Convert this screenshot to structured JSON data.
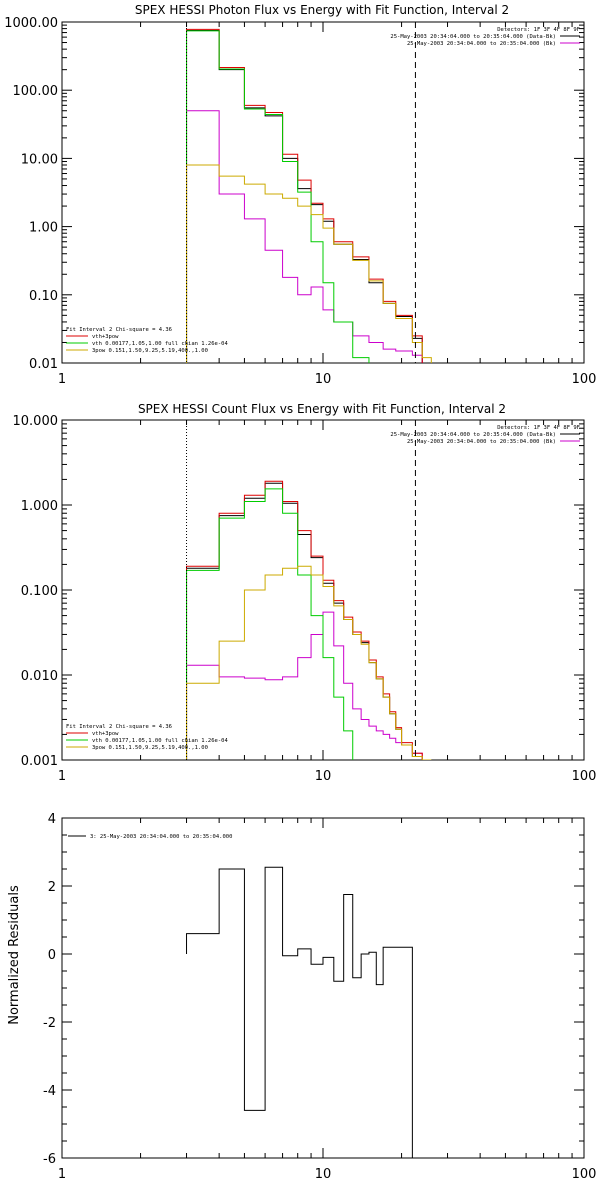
{
  "chart_data": [
    {
      "type": "line",
      "title": "SPEX HESSI Photon Flux vs Energy with Fit Function, Interval 2",
      "x_scale": "log",
      "y_scale": "log",
      "xlim": [
        1,
        100
      ],
      "ylim": [
        0.01,
        1000
      ],
      "x_tick_labels": [
        "1",
        "10",
        "100"
      ],
      "y_tick_labels": [
        "1000.00",
        "100.00",
        "10.00",
        "1.00",
        "0.10",
        "0.01"
      ],
      "vertical_markers": {
        "dotted_x": 3.0,
        "dashed_x": 22.6
      },
      "legend_top_right": {
        "header": "Detectors: 1F 3F 4F 8F 9F",
        "entries": [
          {
            "label": "25-May-2003 20:34:04.000 to 20:35:04.000 (Data-Bk)",
            "color": "#000000"
          },
          {
            "label": "25-May-2003 20:34:04.000 to 20:35:04.000 (Bk)",
            "color": "#cc00cc"
          }
        ]
      },
      "legend_bottom_left": {
        "header": "Fit Interval 2   Chi-square = 4.36",
        "entries": [
          {
            "label": "vth+3pow",
            "color": "#dd0000"
          },
          {
            "label": "vth 0.00177,1.05,1.00  full chian 1.26e-04",
            "color": "#00cc00"
          },
          {
            "label": "3pow 0.151,1.50,9.25,5.19,400.,1.00",
            "color": "#ccaa00"
          }
        ]
      },
      "bin_edges": [
        3.0,
        3.4,
        4.0,
        4.5,
        5.0,
        5.5,
        6.0,
        6.5,
        7.0,
        7.5,
        8.0,
        8.5,
        9.0,
        10.0,
        11.0,
        12.0,
        13.0,
        14.0,
        15.0,
        16.0,
        17.0,
        18.0,
        19.0,
        20.0,
        22.0,
        24.0,
        26.0
      ],
      "series": [
        {
          "name": "Data-Bk",
          "color": "#000000",
          "values": [
            750,
            750,
            200,
            200,
            55,
            55,
            42,
            42,
            10.0,
            10.0,
            3.6,
            3.6,
            2.1,
            1.2,
            0.55,
            0.55,
            0.33,
            0.33,
            0.15,
            0.15,
            0.075,
            0.075,
            0.048,
            0.048,
            0.023,
            null
          ]
        },
        {
          "name": "Bk",
          "color": "#cc00cc",
          "values": [
            50,
            50,
            3.0,
            3.0,
            1.3,
            1.3,
            0.45,
            0.45,
            0.18,
            0.18,
            0.1,
            0.1,
            0.13,
            0.06,
            0.04,
            0.04,
            0.025,
            0.025,
            0.02,
            0.02,
            0.016,
            0.016,
            0.015,
            0.015,
            0.013,
            null
          ]
        },
        {
          "name": "vth+3pow",
          "color": "#dd0000",
          "values": [
            780,
            780,
            215,
            215,
            60,
            60,
            47,
            47,
            11.5,
            11.5,
            4.8,
            4.8,
            2.2,
            1.3,
            0.6,
            0.6,
            0.36,
            0.36,
            0.17,
            0.17,
            0.08,
            0.08,
            0.05,
            0.05,
            0.025,
            null
          ]
        },
        {
          "name": "vth",
          "color": "#00cc00",
          "values": [
            740,
            740,
            205,
            205,
            53,
            53,
            44,
            44,
            9.0,
            9.0,
            3.2,
            3.2,
            0.6,
            0.15,
            0.04,
            0.04,
            0.012,
            0.012,
            null,
            null,
            null,
            null,
            null,
            null,
            null,
            null
          ]
        },
        {
          "name": "3pow",
          "color": "#ccaa00",
          "values": [
            8.0,
            8.0,
            5.5,
            5.5,
            4.2,
            4.2,
            3.0,
            3.0,
            2.6,
            2.6,
            2.0,
            2.0,
            1.5,
            0.95,
            0.55,
            0.55,
            0.32,
            0.32,
            0.16,
            0.16,
            0.075,
            0.075,
            0.045,
            0.045,
            0.02,
            0.012
          ]
        }
      ]
    },
    {
      "type": "line",
      "title": "SPEX HESSI Count Flux vs Energy with Fit Function, Interval 2",
      "x_scale": "log",
      "y_scale": "log",
      "xlim": [
        1,
        100
      ],
      "ylim": [
        0.001,
        10
      ],
      "x_tick_labels": [
        "1",
        "10",
        "100"
      ],
      "y_tick_labels": [
        "10.000",
        "1.000",
        "0.100",
        "0.010",
        "0.001"
      ],
      "vertical_markers": {
        "dotted_x": 3.0,
        "dashed_x": 22.6
      },
      "legend_top_right": {
        "header": "Detectors: 1F 3F 4F 8F 9F",
        "entries": [
          {
            "label": "25-May-2003 20:34:04.000 to 20:35:04.000 (Data-Bk)",
            "color": "#000000"
          },
          {
            "label": "25-May-2003 20:34:04.000 to 20:35:04.000 (Bk)",
            "color": "#cc00cc"
          }
        ]
      },
      "legend_bottom_left": {
        "header": "Fit Interval 2   Chi-square = 4.36",
        "entries": [
          {
            "label": "vth+3pow",
            "color": "#dd0000"
          },
          {
            "label": "vth 0.00177,1.05,1.00  full chian 1.26e-04",
            "color": "#00cc00"
          },
          {
            "label": "3pow 0.151,1.50,9.25,5.19,400.,1.00",
            "color": "#ccaa00"
          }
        ]
      },
      "bin_edges": [
        3.0,
        4.0,
        5.0,
        6.0,
        7.0,
        8.0,
        9.0,
        10.0,
        11.0,
        12.0,
        13.0,
        14.0,
        15.0,
        16.0,
        17.0,
        18.0,
        19.0,
        20.0,
        22.0,
        24.0,
        26.0
      ],
      "series": [
        {
          "name": "Data-Bk",
          "color": "#000000",
          "values": [
            0.18,
            0.75,
            1.2,
            1.8,
            1.05,
            0.45,
            0.24,
            0.12,
            0.07,
            0.045,
            0.03,
            0.024,
            0.014,
            0.009,
            0.0055,
            0.0035,
            0.0023,
            0.0015,
            0.0011,
            null
          ]
        },
        {
          "name": "Bk",
          "color": "#cc00cc",
          "values": [
            0.013,
            0.0095,
            0.0092,
            0.0088,
            0.0095,
            0.016,
            0.03,
            0.055,
            0.022,
            0.008,
            0.004,
            0.003,
            0.0025,
            0.0022,
            0.002,
            0.0018,
            0.0016,
            0.0015,
            0.0012,
            null
          ]
        },
        {
          "name": "vth+3pow",
          "color": "#dd0000",
          "values": [
            0.19,
            0.8,
            1.3,
            1.9,
            1.1,
            0.5,
            0.25,
            0.13,
            0.075,
            0.048,
            0.032,
            0.025,
            0.015,
            0.0095,
            0.006,
            0.0037,
            0.0024,
            0.0016,
            0.0012,
            null
          ]
        },
        {
          "name": "vth",
          "color": "#00cc00",
          "values": [
            0.17,
            0.7,
            1.1,
            1.55,
            0.8,
            0.15,
            0.05,
            0.016,
            0.0055,
            0.0022,
            null,
            null,
            null,
            null,
            null,
            null,
            null,
            null,
            null,
            null
          ]
        },
        {
          "name": "3pow",
          "color": "#ccaa00",
          "values": [
            0.008,
            0.025,
            0.1,
            0.15,
            0.18,
            0.19,
            0.15,
            0.11,
            0.065,
            0.045,
            0.03,
            0.023,
            0.014,
            0.009,
            0.0055,
            0.0035,
            0.0023,
            0.0015,
            0.0011,
            0.0009
          ]
        }
      ]
    },
    {
      "type": "line",
      "title": "",
      "x_scale": "log",
      "y_scale": "linear",
      "xlim": [
        1,
        100
      ],
      "ylim": [
        -6,
        4
      ],
      "x_tick_labels": [
        "1",
        "10",
        "100"
      ],
      "y_tick_labels": [
        "4",
        "2",
        "0",
        "-2",
        "-4",
        "-6"
      ],
      "ylabel": "Normalized Residuals",
      "legend_top_left": {
        "entries": [
          {
            "label": "3: 25-May-2003 20:34:04.000 to 20:35:04.000",
            "color": "#000000"
          }
        ]
      },
      "bin_edges": [
        3.0,
        4.0,
        5.0,
        6.0,
        7.0,
        8.0,
        9.0,
        10.0,
        11.0,
        12.0,
        13.0,
        14.0,
        15.0,
        16.0,
        17.0,
        18.0,
        19.0,
        20.0,
        22.0
      ],
      "series": [
        {
          "name": "",
          "color": "#000000",
          "values": [
            0.6,
            2.5,
            -4.6,
            2.55,
            -0.05,
            0.15,
            -0.3,
            -0.1,
            -0.8,
            1.75,
            -0.7,
            0.0,
            0.05,
            -0.9,
            0.2,
            0.2,
            0.2,
            0.2
          ]
        }
      ]
    }
  ]
}
